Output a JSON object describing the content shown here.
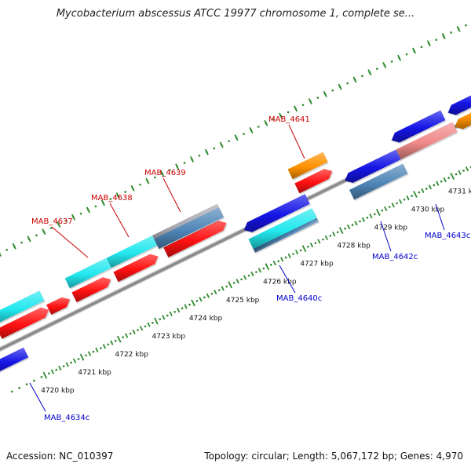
{
  "title": "Mycobacterium abscessus ATCC 19977 chromosome 1, complete se...",
  "footer": {
    "accession": "Accession: NC_010397",
    "stats": "Topology: circular; Length: 5,067,172 bp; Genes: 4,970"
  },
  "colors": {
    "backbone": "#8a8a8a",
    "forward_label": "#cc0000",
    "reverse_label": "#0000cc",
    "tick": "#2e8b2e",
    "red": "#ff1111",
    "cyan": "#22e8ee",
    "blue": "#1515e6",
    "orange": "#ff9200",
    "steel": "#4f86b8",
    "pink": "#f08a8a",
    "silver": "#a8a8b0"
  },
  "scale": {
    "tick_labels": [
      "4720 kbp",
      "4721 kbp",
      "4722 kbp",
      "4723 kbp",
      "4724 kbp",
      "4725 kbp",
      "4726 kbp",
      "4727 kbp",
      "4728 kbp",
      "4729 kbp",
      "4730 kbp",
      "4731 kbp"
    ]
  },
  "genes": [
    {
      "label": "MAB_4637",
      "strand": "forward"
    },
    {
      "label": "MAB_4638",
      "strand": "forward"
    },
    {
      "label": "MAB_4639",
      "strand": "forward"
    },
    {
      "label": "MAB_4641",
      "strand": "forward"
    },
    {
      "label": "MAB_4640c",
      "strand": "reverse"
    },
    {
      "label": "MAB_4642c",
      "strand": "reverse"
    },
    {
      "label": "MAB_4643c",
      "strand": "reverse"
    },
    {
      "label": "MAB_4634c",
      "strand": "reverse"
    }
  ]
}
